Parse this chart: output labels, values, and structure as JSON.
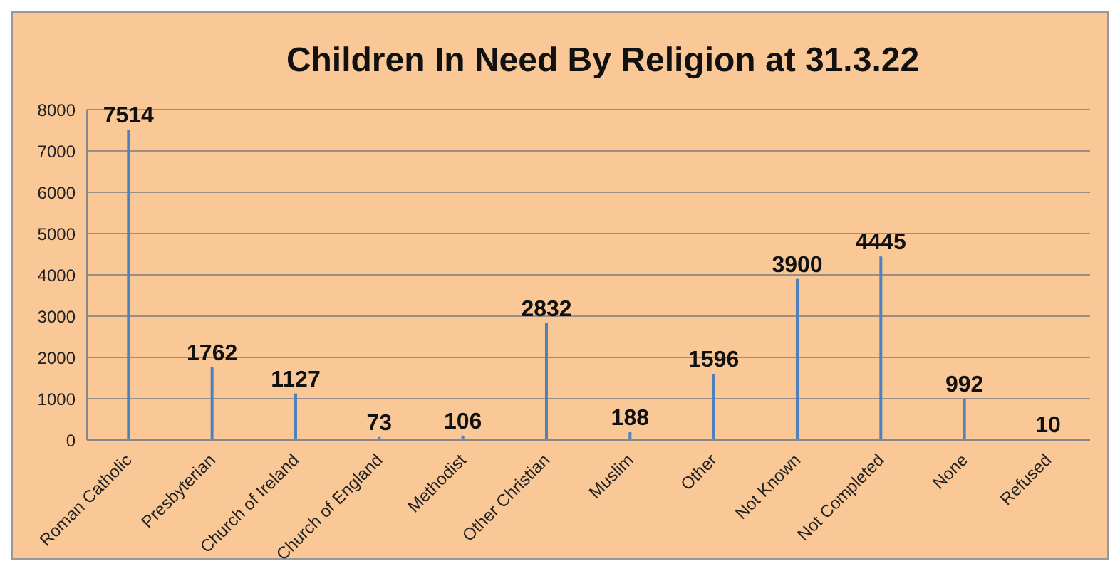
{
  "chart_data": {
    "type": "bar",
    "title": "Children In Need By Religion at 31.3.22",
    "categories": [
      "Roman Catholic",
      "Presbyterian",
      "Church of Ireland",
      "Church of England",
      "Methodist",
      "Other Christian",
      "Muslim",
      "Other",
      "Not Known",
      "Not Completed",
      "None",
      "Refused"
    ],
    "values": [
      7514,
      1762,
      1127,
      73,
      106,
      2832,
      188,
      1596,
      3900,
      4445,
      992,
      10
    ],
    "color": "#4f81bd",
    "ylim": [
      0,
      8000
    ],
    "yticks": [
      0,
      1000,
      2000,
      3000,
      4000,
      5000,
      6000,
      7000,
      8000
    ],
    "grid": "y",
    "data_labels": true
  }
}
